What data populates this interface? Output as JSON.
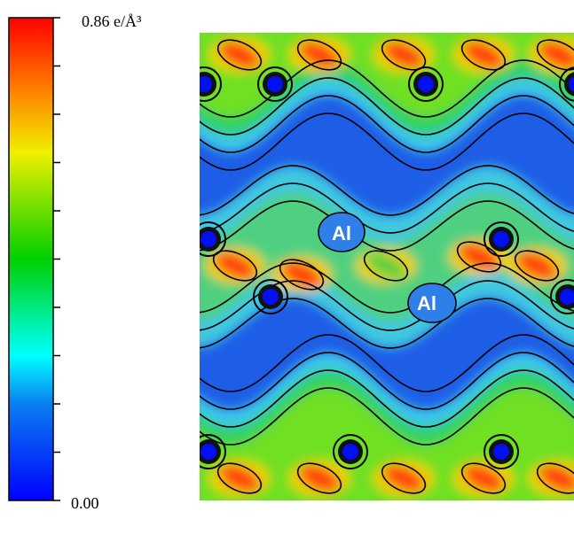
{
  "colorbar": {
    "max_label": "0.86 e/Å³",
    "min_label": "0.00"
  },
  "map": {
    "labels": [
      "Al",
      "Al"
    ]
  }
}
